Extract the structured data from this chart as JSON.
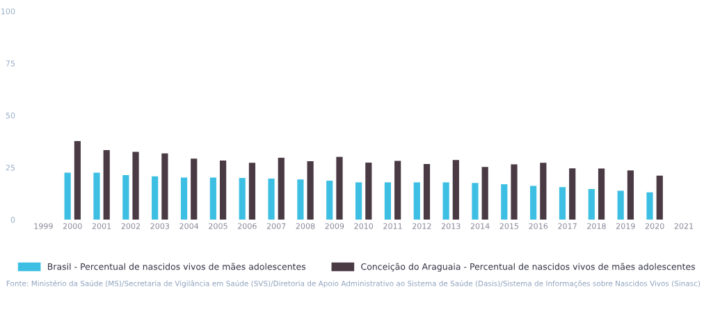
{
  "chart_data": {
    "type": "bar",
    "categories": [
      "1999",
      "2000",
      "2001",
      "2002",
      "2003",
      "2004",
      "2005",
      "2006",
      "2007",
      "2008",
      "2009",
      "2010",
      "2011",
      "2012",
      "2013",
      "2014",
      "2015",
      "2016",
      "2017",
      "2018",
      "2019",
      "2020",
      "2021"
    ],
    "series": [
      {
        "name": "Brasil - Percentual de nascidos vivos de mães adolescentes",
        "color": "#3dbfe3",
        "values": [
          null,
          22.5,
          22.5,
          21.4,
          20.8,
          20.2,
          20.2,
          20.0,
          19.7,
          19.3,
          18.7,
          17.9,
          17.9,
          17.9,
          17.9,
          17.6,
          17.0,
          16.2,
          15.6,
          14.7,
          13.9,
          13.1,
          null
        ]
      },
      {
        "name": "Conceição do Araguaia - Percentual de nascidos vivos de mães adolescentes",
        "color": "#4a3a44",
        "values": [
          null,
          37.7,
          33.4,
          32.5,
          31.8,
          29.3,
          28.4,
          27.3,
          29.7,
          28.0,
          30.1,
          27.4,
          28.2,
          26.7,
          28.6,
          25.3,
          26.5,
          27.3,
          24.6,
          24.5,
          23.6,
          21.1,
          null
        ]
      }
    ],
    "ylim": [
      0,
      100
    ],
    "yticks": [
      0,
      25,
      50,
      75,
      100
    ],
    "grid": false,
    "legend": "bottom",
    "annotations": [
      "Fonte: Ministério da Saúde (MS)/Secretaria de Vigilância em Saúde (SVS)/Diretoria de Apoio Administrativo ao Sistema de Saúde (Dasis)/Sistema de Informações sobre Nascidos Vivos (Sinasc)"
    ]
  }
}
